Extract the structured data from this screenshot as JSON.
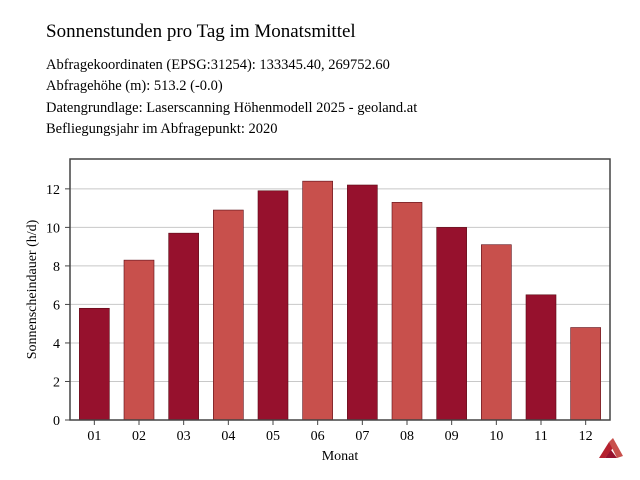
{
  "header": {
    "title": "Sonnenstunden pro Tag im Monatsmittel",
    "lines": [
      "Abfragekoordinaten (EPSG:31254): 133345.40, 269752.60",
      "Abfragehöhe (m): 513.2 (-0.0)",
      "Datengrundlage: Laserscanning Höhenmodell 2025 - geoland.at",
      "Befliegungsjahr im Abfragepunkt: 2020"
    ]
  },
  "chart_data": {
    "type": "bar",
    "categories": [
      "01",
      "02",
      "03",
      "04",
      "05",
      "06",
      "07",
      "08",
      "09",
      "10",
      "11",
      "12"
    ],
    "values": [
      5.8,
      8.3,
      9.7,
      10.9,
      11.9,
      12.4,
      12.2,
      11.3,
      10.0,
      9.1,
      6.5,
      4.8
    ],
    "xlabel": "Monat",
    "ylabel": "Sonnenscheindauer (h/d)",
    "ylim": [
      0,
      12.5
    ],
    "yticks": [
      0,
      2,
      4,
      6,
      8,
      10,
      12
    ],
    "grid": true,
    "colors": {
      "dark": "#96112d",
      "light": "#c8504c",
      "grid": "#c8c8c8",
      "frame": "#444444"
    }
  },
  "logo": {
    "icon": "logo-icon"
  }
}
